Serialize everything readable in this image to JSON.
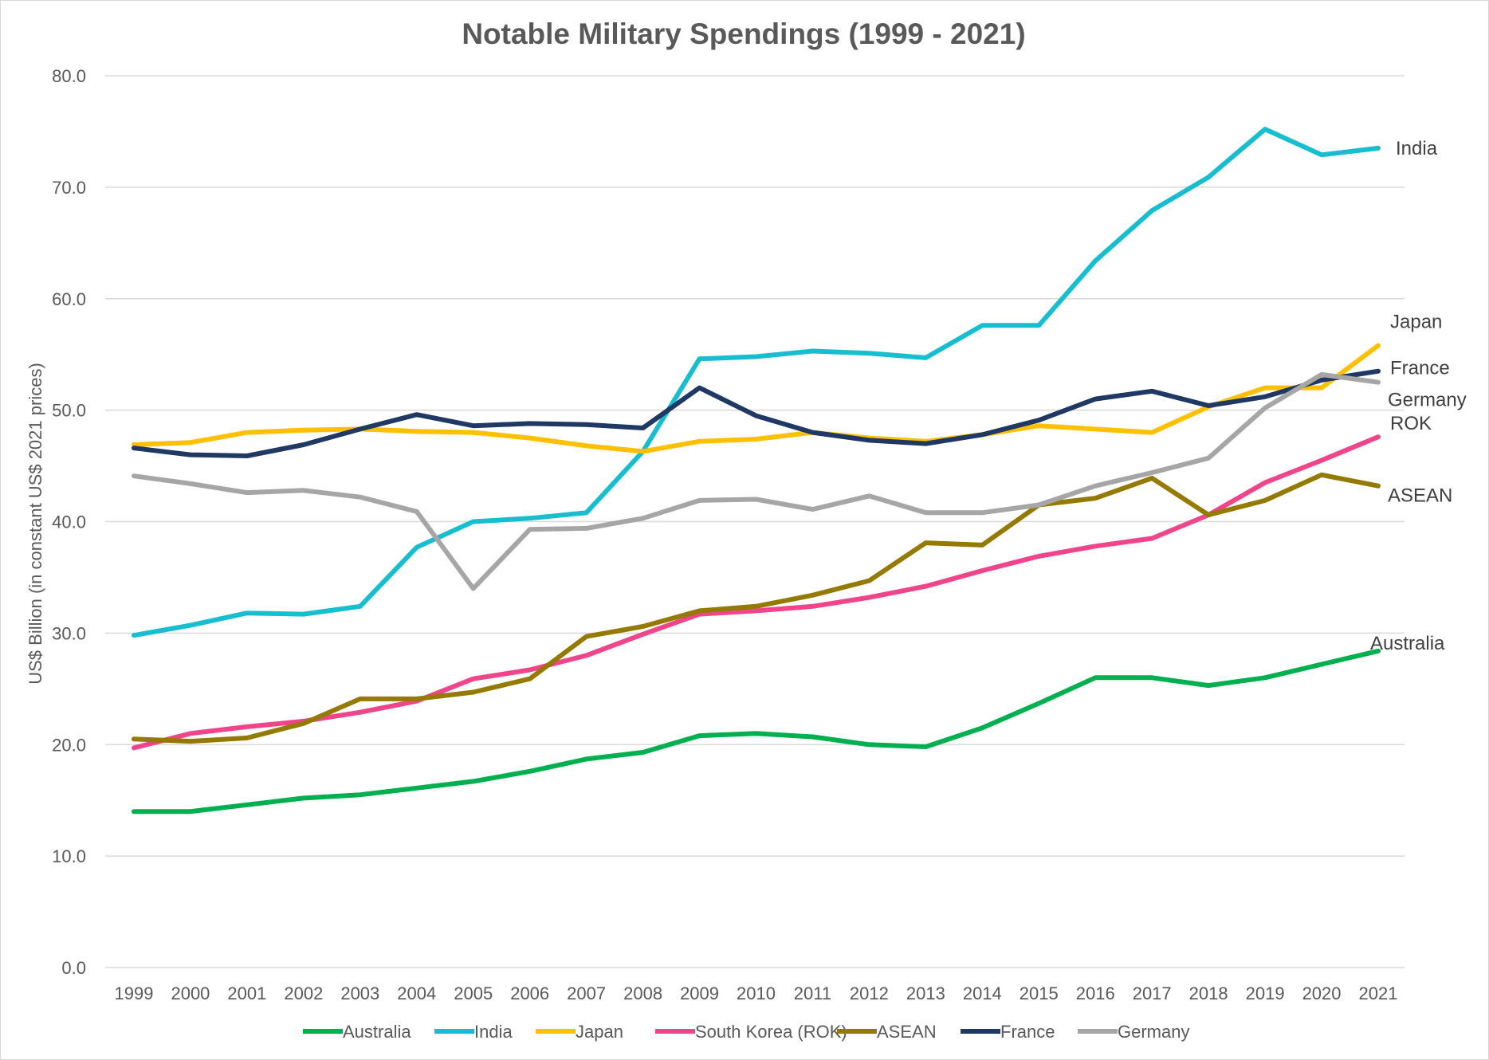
{
  "chart_data": {
    "type": "line",
    "title": "Notable Military Spendings (1999 - 2021)",
    "xlabel": "",
    "ylabel": "US$ Billion (in constant US$ 2021 prices)",
    "ylim": [
      0,
      80
    ],
    "yticks": [
      "0.0",
      "10.0",
      "20.0",
      "30.0",
      "40.0",
      "50.0",
      "60.0",
      "70.0",
      "80.0"
    ],
    "grid": true,
    "legend": "bottom",
    "categories": [
      "1999",
      "2000",
      "2001",
      "2002",
      "2003",
      "2004",
      "2005",
      "2006",
      "2007",
      "2008",
      "2009",
      "2010",
      "2011",
      "2012",
      "2013",
      "2014",
      "2015",
      "2016",
      "2017",
      "2018",
      "2019",
      "2020",
      "2021"
    ],
    "series": [
      {
        "name": "Australia",
        "end_label": "Australia",
        "color": "#00b050",
        "values": [
          14.0,
          14.0,
          14.6,
          15.2,
          15.5,
          16.1,
          16.7,
          17.6,
          18.7,
          19.3,
          20.8,
          21.0,
          20.7,
          20.0,
          19.8,
          21.5,
          23.7,
          26.0,
          26.0,
          25.3,
          26.0,
          27.2,
          28.4
        ]
      },
      {
        "name": "India",
        "end_label": "India",
        "color": "#17becf",
        "values": [
          29.8,
          30.7,
          31.8,
          31.7,
          32.4,
          37.7,
          40.0,
          40.3,
          40.8,
          46.3,
          54.6,
          54.8,
          55.3,
          55.1,
          54.7,
          57.6,
          57.6,
          63.4,
          67.9,
          70.9,
          75.2,
          72.9,
          73.5
        ]
      },
      {
        "name": "Japan",
        "end_label": "Japan",
        "color": "#ffc000",
        "values": [
          46.9,
          47.1,
          48.0,
          48.2,
          48.3,
          48.1,
          48.0,
          47.5,
          46.8,
          46.3,
          47.2,
          47.4,
          48.0,
          47.5,
          47.2,
          47.8,
          48.6,
          48.3,
          48.0,
          50.3,
          52.0,
          52.0,
          55.8
        ]
      },
      {
        "name": "South Korea (ROK)",
        "end_label": "ROK",
        "color": "#f0458a",
        "values": [
          19.7,
          21.0,
          21.6,
          22.1,
          22.9,
          23.9,
          25.9,
          26.7,
          28.0,
          29.9,
          31.7,
          32.0,
          32.4,
          33.2,
          34.2,
          35.6,
          36.9,
          37.8,
          38.5,
          40.6,
          43.5,
          45.5,
          47.6
        ]
      },
      {
        "name": "ASEAN",
        "end_label": "ASEAN",
        "color": "#947a00",
        "values": [
          20.5,
          20.3,
          20.6,
          21.9,
          24.1,
          24.1,
          24.7,
          25.9,
          29.7,
          30.6,
          32.0,
          32.4,
          33.4,
          34.7,
          38.1,
          37.9,
          41.5,
          42.1,
          43.9,
          40.6,
          41.9,
          44.2,
          43.2
        ]
      },
      {
        "name": "France",
        "end_label": "France",
        "color": "#203864",
        "values": [
          46.6,
          46.0,
          45.9,
          46.9,
          48.3,
          49.6,
          48.6,
          48.8,
          48.7,
          48.4,
          52.0,
          49.5,
          48.0,
          47.3,
          47.0,
          47.8,
          49.1,
          51.0,
          51.7,
          50.4,
          51.2,
          52.7,
          53.5
        ]
      },
      {
        "name": "Germany",
        "end_label": "Germany",
        "color": "#a6a6a6",
        "values": [
          44.1,
          43.4,
          42.6,
          42.8,
          42.2,
          40.9,
          34.0,
          39.3,
          39.4,
          40.3,
          41.9,
          42.0,
          41.1,
          42.3,
          40.8,
          40.8,
          41.5,
          43.2,
          44.4,
          45.7,
          50.2,
          53.2,
          52.5
        ]
      }
    ]
  }
}
